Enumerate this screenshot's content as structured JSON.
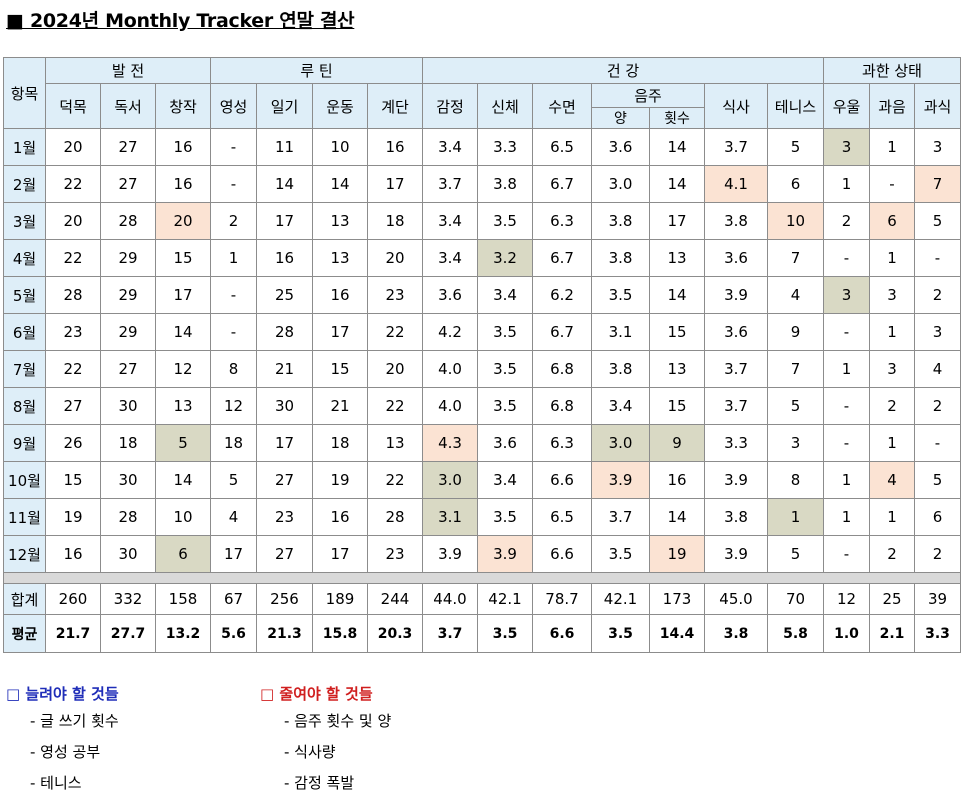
{
  "title": "■ 2024년 Monthly Tracker 연말 결산",
  "header": {
    "row_label": "항목",
    "groups": [
      "발 전",
      "루 틴",
      "건 강",
      "과한 상태"
    ],
    "columns": [
      "덕목",
      "독서",
      "창작",
      "영성",
      "일기",
      "운동",
      "계단",
      "감정",
      "신체",
      "수면",
      "음주",
      "식사",
      "테니스",
      "우울",
      "과음",
      "과식"
    ],
    "drink_sub": [
      "양",
      "횟수"
    ]
  },
  "rows": [
    {
      "label": "1월",
      "values": [
        "20",
        "27",
        "16",
        "-",
        "11",
        "10",
        "16",
        "3.4",
        "3.3",
        "6.5",
        "3.6",
        "14",
        "3.7",
        "5",
        "3",
        "1",
        "3"
      ]
    },
    {
      "label": "2월",
      "values": [
        "22",
        "27",
        "16",
        "-",
        "14",
        "14",
        "17",
        "3.7",
        "3.8",
        "6.7",
        "3.0",
        "14",
        "4.1",
        "6",
        "1",
        "-",
        "7"
      ]
    },
    {
      "label": "3월",
      "values": [
        "20",
        "28",
        "20",
        "2",
        "17",
        "13",
        "18",
        "3.4",
        "3.5",
        "6.3",
        "3.8",
        "17",
        "3.8",
        "10",
        "2",
        "6",
        "5"
      ]
    },
    {
      "label": "4월",
      "values": [
        "22",
        "29",
        "15",
        "1",
        "16",
        "13",
        "20",
        "3.4",
        "3.2",
        "6.7",
        "3.8",
        "13",
        "3.6",
        "7",
        "-",
        "1",
        "-"
      ]
    },
    {
      "label": "5월",
      "values": [
        "28",
        "29",
        "17",
        "-",
        "25",
        "16",
        "23",
        "3.6",
        "3.4",
        "6.2",
        "3.5",
        "14",
        "3.9",
        "4",
        "3",
        "3",
        "2"
      ]
    },
    {
      "label": "6월",
      "values": [
        "23",
        "29",
        "14",
        "-",
        "28",
        "17",
        "22",
        "4.2",
        "3.5",
        "6.7",
        "3.1",
        "15",
        "3.6",
        "9",
        "-",
        "1",
        "3"
      ]
    },
    {
      "label": "7월",
      "values": [
        "22",
        "27",
        "12",
        "8",
        "21",
        "15",
        "20",
        "4.0",
        "3.5",
        "6.8",
        "3.8",
        "13",
        "3.7",
        "7",
        "1",
        "3",
        "4"
      ]
    },
    {
      "label": "8월",
      "values": [
        "27",
        "30",
        "13",
        "12",
        "30",
        "21",
        "22",
        "4.0",
        "3.5",
        "6.8",
        "3.4",
        "15",
        "3.7",
        "5",
        "-",
        "2",
        "2"
      ]
    },
    {
      "label": "9월",
      "values": [
        "26",
        "18",
        "5",
        "18",
        "17",
        "18",
        "13",
        "4.3",
        "3.6",
        "6.3",
        "3.0",
        "9",
        "3.3",
        "3",
        "-",
        "1",
        "-"
      ]
    },
    {
      "label": "10월",
      "values": [
        "15",
        "30",
        "14",
        "5",
        "27",
        "19",
        "22",
        "3.0",
        "3.4",
        "6.6",
        "3.9",
        "16",
        "3.9",
        "8",
        "1",
        "4",
        "5"
      ]
    },
    {
      "label": "11월",
      "values": [
        "19",
        "28",
        "10",
        "4",
        "23",
        "16",
        "28",
        "3.1",
        "3.5",
        "6.5",
        "3.7",
        "14",
        "3.8",
        "1",
        "1",
        "1",
        "6"
      ]
    },
    {
      "label": "12월",
      "values": [
        "16",
        "30",
        "6",
        "17",
        "27",
        "17",
        "23",
        "3.9",
        "3.9",
        "6.6",
        "3.5",
        "19",
        "3.9",
        "5",
        "-",
        "2",
        "2"
      ]
    }
  ],
  "summary": [
    {
      "label": "합계",
      "values": [
        "260",
        "332",
        "158",
        "67",
        "256",
        "189",
        "244",
        "44.0",
        "42.1",
        "78.7",
        "42.1",
        "173",
        "45.0",
        "70",
        "12",
        "25",
        "39"
      ]
    },
    {
      "label": "평균",
      "values": [
        "21.7",
        "27.7",
        "13.2",
        "5.6",
        "21.3",
        "15.8",
        "20.3",
        "3.7",
        "3.5",
        "6.6",
        "3.5",
        "14.4",
        "3.8",
        "5.8",
        "1.0",
        "2.1",
        "3.3"
      ]
    }
  ],
  "highlights": {
    "0": {
      "14": "g"
    },
    "1": {
      "12": "o",
      "16": "o"
    },
    "2": {
      "2": "o",
      "13": "o",
      "15": "o"
    },
    "3": {
      "8": "g"
    },
    "4": {
      "14": "g"
    },
    "8": {
      "2": "g",
      "7": "o",
      "10": "g",
      "11": "g"
    },
    "9": {
      "7": "g",
      "10": "o",
      "15": "o"
    },
    "10": {
      "7": "g",
      "13": "g"
    },
    "11": {
      "2": "g",
      "8": "o",
      "11": "o"
    }
  },
  "notes": {
    "increase": {
      "heading": "□ 늘려야 할 것들",
      "items": [
        "- 글 쓰기 횟수",
        "- 영성 공부",
        "- 테니스"
      ]
    },
    "decrease": {
      "heading": "□ 줄여야 할 것들",
      "items": [
        "- 음주 횟수 및 양",
        "- 식사량",
        "- 감정 폭발"
      ]
    }
  },
  "colors": {
    "header_bg": "#deeef8",
    "highlight_green": "#d9d9c4",
    "highlight_orange": "#fbe3d3",
    "increase_heading": "#1f2db8",
    "decrease_heading": "#d01f1f"
  }
}
